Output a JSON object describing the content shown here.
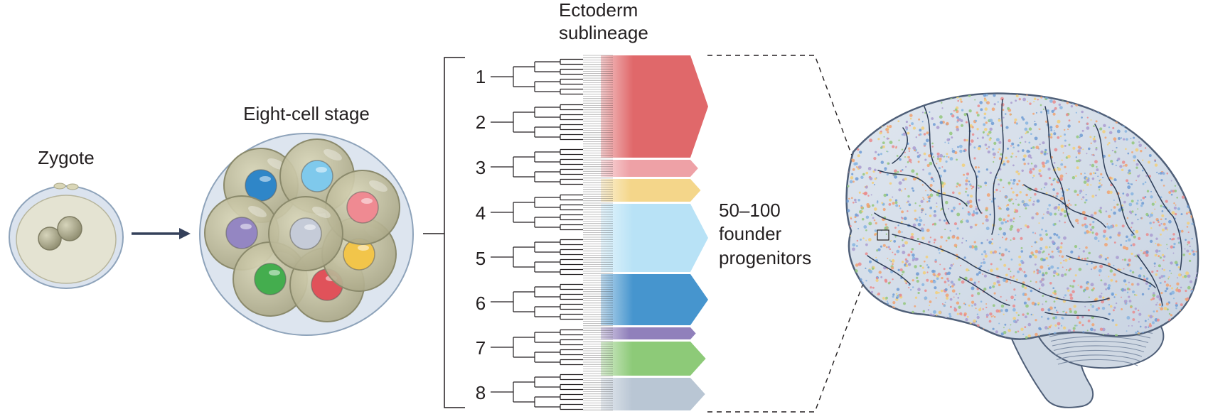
{
  "labels": {
    "zygote": "Zygote",
    "eight_cell": "Eight-cell stage",
    "ectoderm_line1": "Ectoderm",
    "ectoderm_line2": "sublineage",
    "founders_line1": "50–100",
    "founders_line2": "founder",
    "founders_line3": "progenitors"
  },
  "lineages": [
    {
      "number": "1"
    },
    {
      "number": "2"
    },
    {
      "number": "3"
    },
    {
      "number": "4"
    },
    {
      "number": "5"
    },
    {
      "number": "6"
    },
    {
      "number": "7"
    },
    {
      "number": "8"
    }
  ],
  "founder_colors": [
    "#e0686a",
    "#eea1a6",
    "#f4d68a",
    "#b8e2f6",
    "#4695ce",
    "#9080bb",
    "#8dca78",
    "#b9c6d4"
  ],
  "blastomere_nucleus_colors": [
    "#2f86c8",
    "#7fc9ec",
    "#ef8a92",
    "#9486c2",
    "#c5cbd8",
    "#f2c54a",
    "#44ad4e",
    "#e0525a"
  ],
  "brain_dot_colors": [
    "#6f9bd4",
    "#87b4e0",
    "#f1a271",
    "#e98b8d",
    "#93c77b",
    "#a99bd0",
    "#f2cf79"
  ]
}
